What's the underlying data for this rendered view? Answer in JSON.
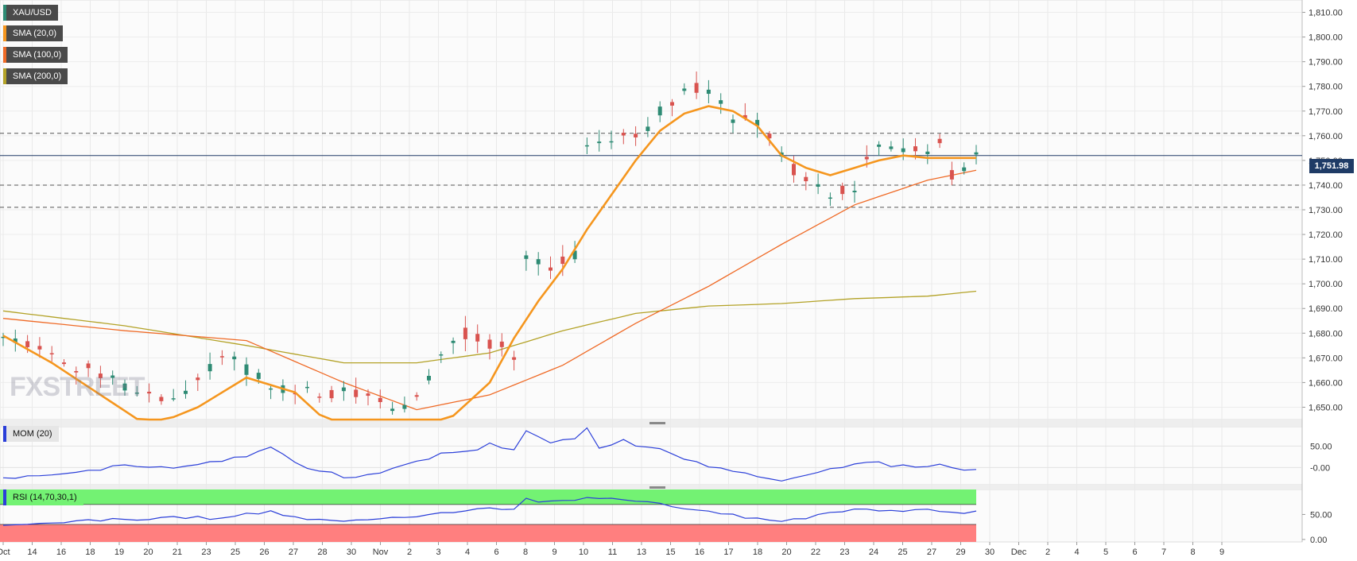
{
  "chart_data": [
    {
      "type": "candlestick",
      "symbol": "XAU/USD",
      "ylim": [
        1645,
        1815
      ],
      "yticks": [
        "1,650.00",
        "1,660.00",
        "1,670.00",
        "1,680.00",
        "1,690.00",
        "1,700.00",
        "1,710.00",
        "1,720.00",
        "1,730.00",
        "1,740.00",
        "1,750.00",
        "1,760.00",
        "1,770.00",
        "1,780.00",
        "1,790.00",
        "1,800.00",
        "1,810.00"
      ],
      "x_ticks": [
        "Oct",
        "14",
        "16",
        "18",
        "19",
        "20",
        "21",
        "23",
        "25",
        "26",
        "27",
        "28",
        "30",
        "Nov",
        "2",
        "3",
        "4",
        "6",
        "8",
        "9",
        "10",
        "11",
        "13",
        "15",
        "16",
        "17",
        "18",
        "20",
        "22",
        "23",
        "24",
        "25",
        "27",
        "29",
        "30",
        "Dec",
        "2",
        "4",
        "5",
        "6",
        "7",
        "8",
        "9"
      ],
      "last_price": "1,751.98",
      "last_price_value": 1751.98,
      "levels": [
        1761,
        1740,
        1731
      ],
      "legend": [
        "XAU/USD",
        "SMA (20,0)",
        "SMA (100,0)",
        "SMA (200,0)"
      ],
      "sma20_keys": [
        [
          0,
          1679
        ],
        [
          4,
          1668
        ],
        [
          8,
          1655
        ],
        [
          12,
          1642
        ],
        [
          16,
          1650
        ],
        [
          20,
          1662
        ],
        [
          24,
          1656
        ],
        [
          28,
          1638
        ],
        [
          32,
          1631
        ],
        [
          36,
          1642
        ],
        [
          40,
          1660
        ],
        [
          42,
          1678
        ],
        [
          44,
          1693
        ],
        [
          46,
          1706
        ],
        [
          48,
          1722
        ],
        [
          50,
          1736
        ],
        [
          52,
          1750
        ],
        [
          54,
          1762
        ],
        [
          56,
          1769
        ],
        [
          58,
          1772
        ],
        [
          60,
          1770
        ],
        [
          62,
          1764
        ],
        [
          64,
          1752
        ],
        [
          66,
          1747
        ],
        [
          68,
          1744
        ],
        [
          70,
          1747
        ],
        [
          72,
          1750
        ],
        [
          74,
          1752
        ],
        [
          76,
          1751
        ],
        [
          78,
          1751
        ],
        [
          80,
          1751
        ]
      ],
      "sma100_keys": [
        [
          0,
          1686
        ],
        [
          10,
          1681
        ],
        [
          20,
          1677
        ],
        [
          28,
          1660
        ],
        [
          34,
          1649
        ],
        [
          40,
          1655
        ],
        [
          46,
          1667
        ],
        [
          52,
          1684
        ],
        [
          58,
          1699
        ],
        [
          64,
          1716
        ],
        [
          70,
          1732
        ],
        [
          76,
          1742
        ],
        [
          80,
          1746
        ]
      ],
      "sma200_keys": [
        [
          0,
          1689
        ],
        [
          10,
          1683
        ],
        [
          20,
          1675
        ],
        [
          28,
          1668
        ],
        [
          34,
          1668
        ],
        [
          40,
          1672
        ],
        [
          46,
          1681
        ],
        [
          52,
          1688
        ],
        [
          58,
          1691
        ],
        [
          64,
          1692
        ],
        [
          70,
          1694
        ],
        [
          76,
          1695
        ],
        [
          80,
          1697
        ]
      ],
      "candle_path": [
        [
          0,
          1679
        ],
        [
          6,
          1667
        ],
        [
          10,
          1658
        ],
        [
          14,
          1654
        ],
        [
          16,
          1660
        ],
        [
          18,
          1672
        ],
        [
          20,
          1666
        ],
        [
          22,
          1659
        ],
        [
          26,
          1654
        ],
        [
          28,
          1658
        ],
        [
          30,
          1656
        ],
        [
          32,
          1650
        ],
        [
          34,
          1653
        ],
        [
          36,
          1672
        ],
        [
          38,
          1680
        ],
        [
          40,
          1676
        ],
        [
          42,
          1672
        ],
        [
          43,
          1712
        ],
        [
          45,
          1705
        ],
        [
          47,
          1712
        ],
        [
          48,
          1754
        ],
        [
          50,
          1760
        ],
        [
          52,
          1758
        ],
        [
          54,
          1770
        ],
        [
          56,
          1780
        ],
        [
          58,
          1777
        ],
        [
          60,
          1767
        ],
        [
          62,
          1764
        ],
        [
          64,
          1752
        ],
        [
          66,
          1742
        ],
        [
          68,
          1736
        ],
        [
          70,
          1740
        ],
        [
          71,
          1751
        ],
        [
          73,
          1756
        ],
        [
          75,
          1754
        ],
        [
          77,
          1756
        ],
        [
          78,
          1744
        ],
        [
          80,
          1752
        ]
      ]
    },
    {
      "type": "line",
      "label": "MOM (20)",
      "yticks": [
        "50.00",
        "-0.00"
      ],
      "ylim": [
        -40,
        95
      ],
      "values_keys": [
        [
          0,
          -26
        ],
        [
          6,
          -8
        ],
        [
          10,
          3
        ],
        [
          14,
          2
        ],
        [
          18,
          16
        ],
        [
          20,
          28
        ],
        [
          22,
          48
        ],
        [
          24,
          8
        ],
        [
          28,
          -22
        ],
        [
          30,
          -18
        ],
        [
          34,
          14
        ],
        [
          36,
          30
        ],
        [
          38,
          36
        ],
        [
          40,
          54
        ],
        [
          42,
          40
        ],
        [
          43,
          88
        ],
        [
          45,
          58
        ],
        [
          47,
          70
        ],
        [
          48,
          90
        ],
        [
          49,
          42
        ],
        [
          51,
          62
        ],
        [
          53,
          44
        ],
        [
          54,
          45
        ],
        [
          56,
          20
        ],
        [
          58,
          2
        ],
        [
          60,
          -6
        ],
        [
          62,
          -20
        ],
        [
          64,
          -28
        ],
        [
          66,
          -20
        ],
        [
          68,
          -4
        ],
        [
          70,
          8
        ],
        [
          71,
          14
        ],
        [
          73,
          6
        ],
        [
          75,
          2
        ],
        [
          77,
          4
        ],
        [
          78,
          -2
        ],
        [
          80,
          -3
        ]
      ]
    },
    {
      "type": "line",
      "label": "RSI (14,70,30,1)",
      "yticks": [
        "50.00",
        "0.00"
      ],
      "ylim": [
        -5,
        100
      ],
      "overbought": 70,
      "oversold": 30,
      "values_keys": [
        [
          0,
          28
        ],
        [
          6,
          38
        ],
        [
          10,
          40
        ],
        [
          14,
          45
        ],
        [
          18,
          42
        ],
        [
          20,
          52
        ],
        [
          22,
          55
        ],
        [
          24,
          44
        ],
        [
          28,
          36
        ],
        [
          30,
          38
        ],
        [
          34,
          48
        ],
        [
          36,
          55
        ],
        [
          38,
          58
        ],
        [
          40,
          62
        ],
        [
          42,
          60
        ],
        [
          43,
          80
        ],
        [
          45,
          75
        ],
        [
          47,
          78
        ],
        [
          48,
          82
        ],
        [
          50,
          80
        ],
        [
          52,
          76
        ],
        [
          54,
          74
        ],
        [
          56,
          62
        ],
        [
          58,
          58
        ],
        [
          60,
          48
        ],
        [
          62,
          42
        ],
        [
          64,
          38
        ],
        [
          66,
          44
        ],
        [
          68,
          52
        ],
        [
          70,
          58
        ],
        [
          71,
          62
        ],
        [
          73,
          58
        ],
        [
          75,
          57
        ],
        [
          77,
          58
        ],
        [
          78,
          52
        ],
        [
          80,
          54
        ]
      ]
    }
  ],
  "colors": {
    "bull": "#2e8b74",
    "bear": "#d9534f",
    "sma20": "#f5961e",
    "sma100": "#ef6a26",
    "sma200": "#b3a227",
    "indicator_line": "#2b3fd9",
    "level_line": "#555555",
    "price_line": "#1f3b66",
    "overbought_fill": "#73f273",
    "oversold_fill": "#ff7f7f"
  },
  "watermark": "FXSTREET"
}
